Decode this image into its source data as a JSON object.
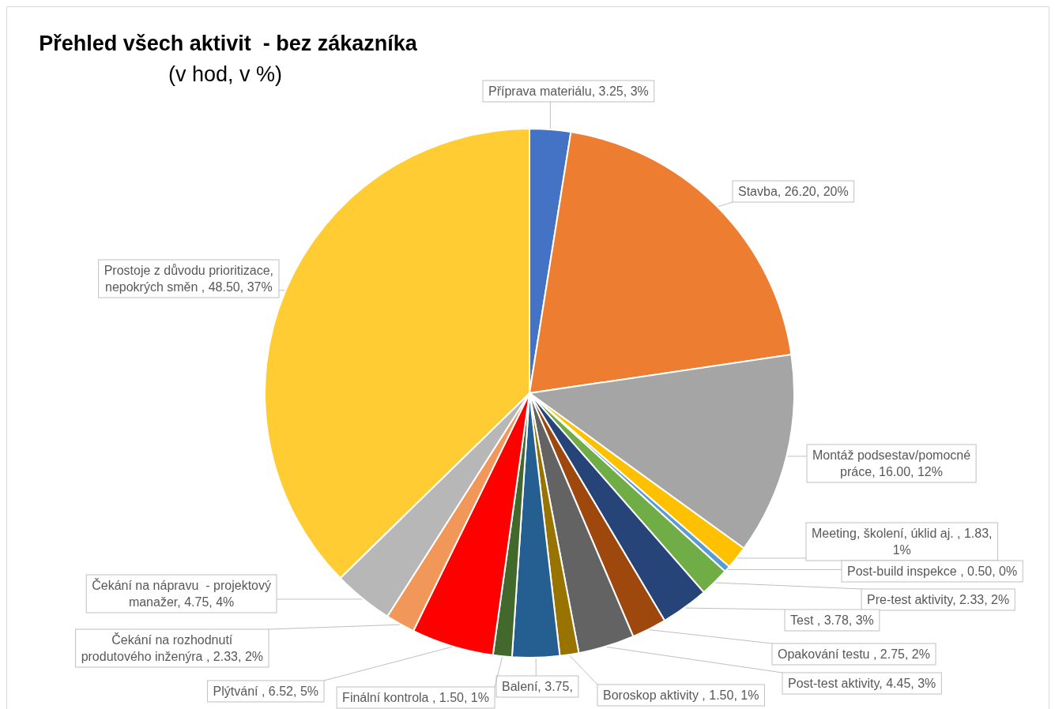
{
  "chart_data": {
    "type": "pie",
    "title": "Přehled všech aktivit  - bez zákazníka",
    "subtitle": "(v hod, v %)",
    "categories": [
      "Příprava materiálu",
      "Stavba",
      "Montáž podsestav/pomocné práce",
      "Meeting, školení, úklid aj. ",
      "Post-build inspekce ",
      "Pre-test aktivity",
      "Test ",
      "Opakování testu ",
      "Post-test aktivity",
      "Boroskop aktivity ",
      "Balení",
      "Finální kontrola ",
      "Plýtvání ",
      "Čekání na rozhodnutí produtového inženýra ",
      "Čekání na nápravu  - projektový manažer",
      "Prostoje z důvodu prioritizace, nepokrých směn "
    ],
    "values": [
      3.25,
      26.2,
      16,
      1.83,
      0.5,
      2.33,
      3.78,
      2.75,
      4.45,
      1.5,
      3.75,
      1.5,
      6.52,
      2.33,
      4.75,
      48.5
    ],
    "colors": [
      "#4472c4",
      "#ed7d31",
      "#a5a5a5",
      "#ffc000",
      "#5b9bd5",
      "#70ad47",
      "#264478",
      "#9e480e",
      "#636363",
      "#997300",
      "#255e91",
      "#43682b",
      "#ff0000",
      "#f1975a",
      "#b7b7b7",
      "#ffcd33"
    ],
    "value_labels": [
      "3.25, 3%",
      "26.20, 20%",
      "16.00, 12%",
      "1.83, 1%",
      "0.50, 0%",
      "2.33, 2%",
      "3.78, 3%",
      "2.75, 2%",
      "4.45, 3%",
      "1.50, 1%",
      "3.75,",
      "1.50, 1%",
      "6.52, 5%",
      "2.33, 2%",
      "4.75, 4%",
      "48.50, 37%"
    ]
  }
}
